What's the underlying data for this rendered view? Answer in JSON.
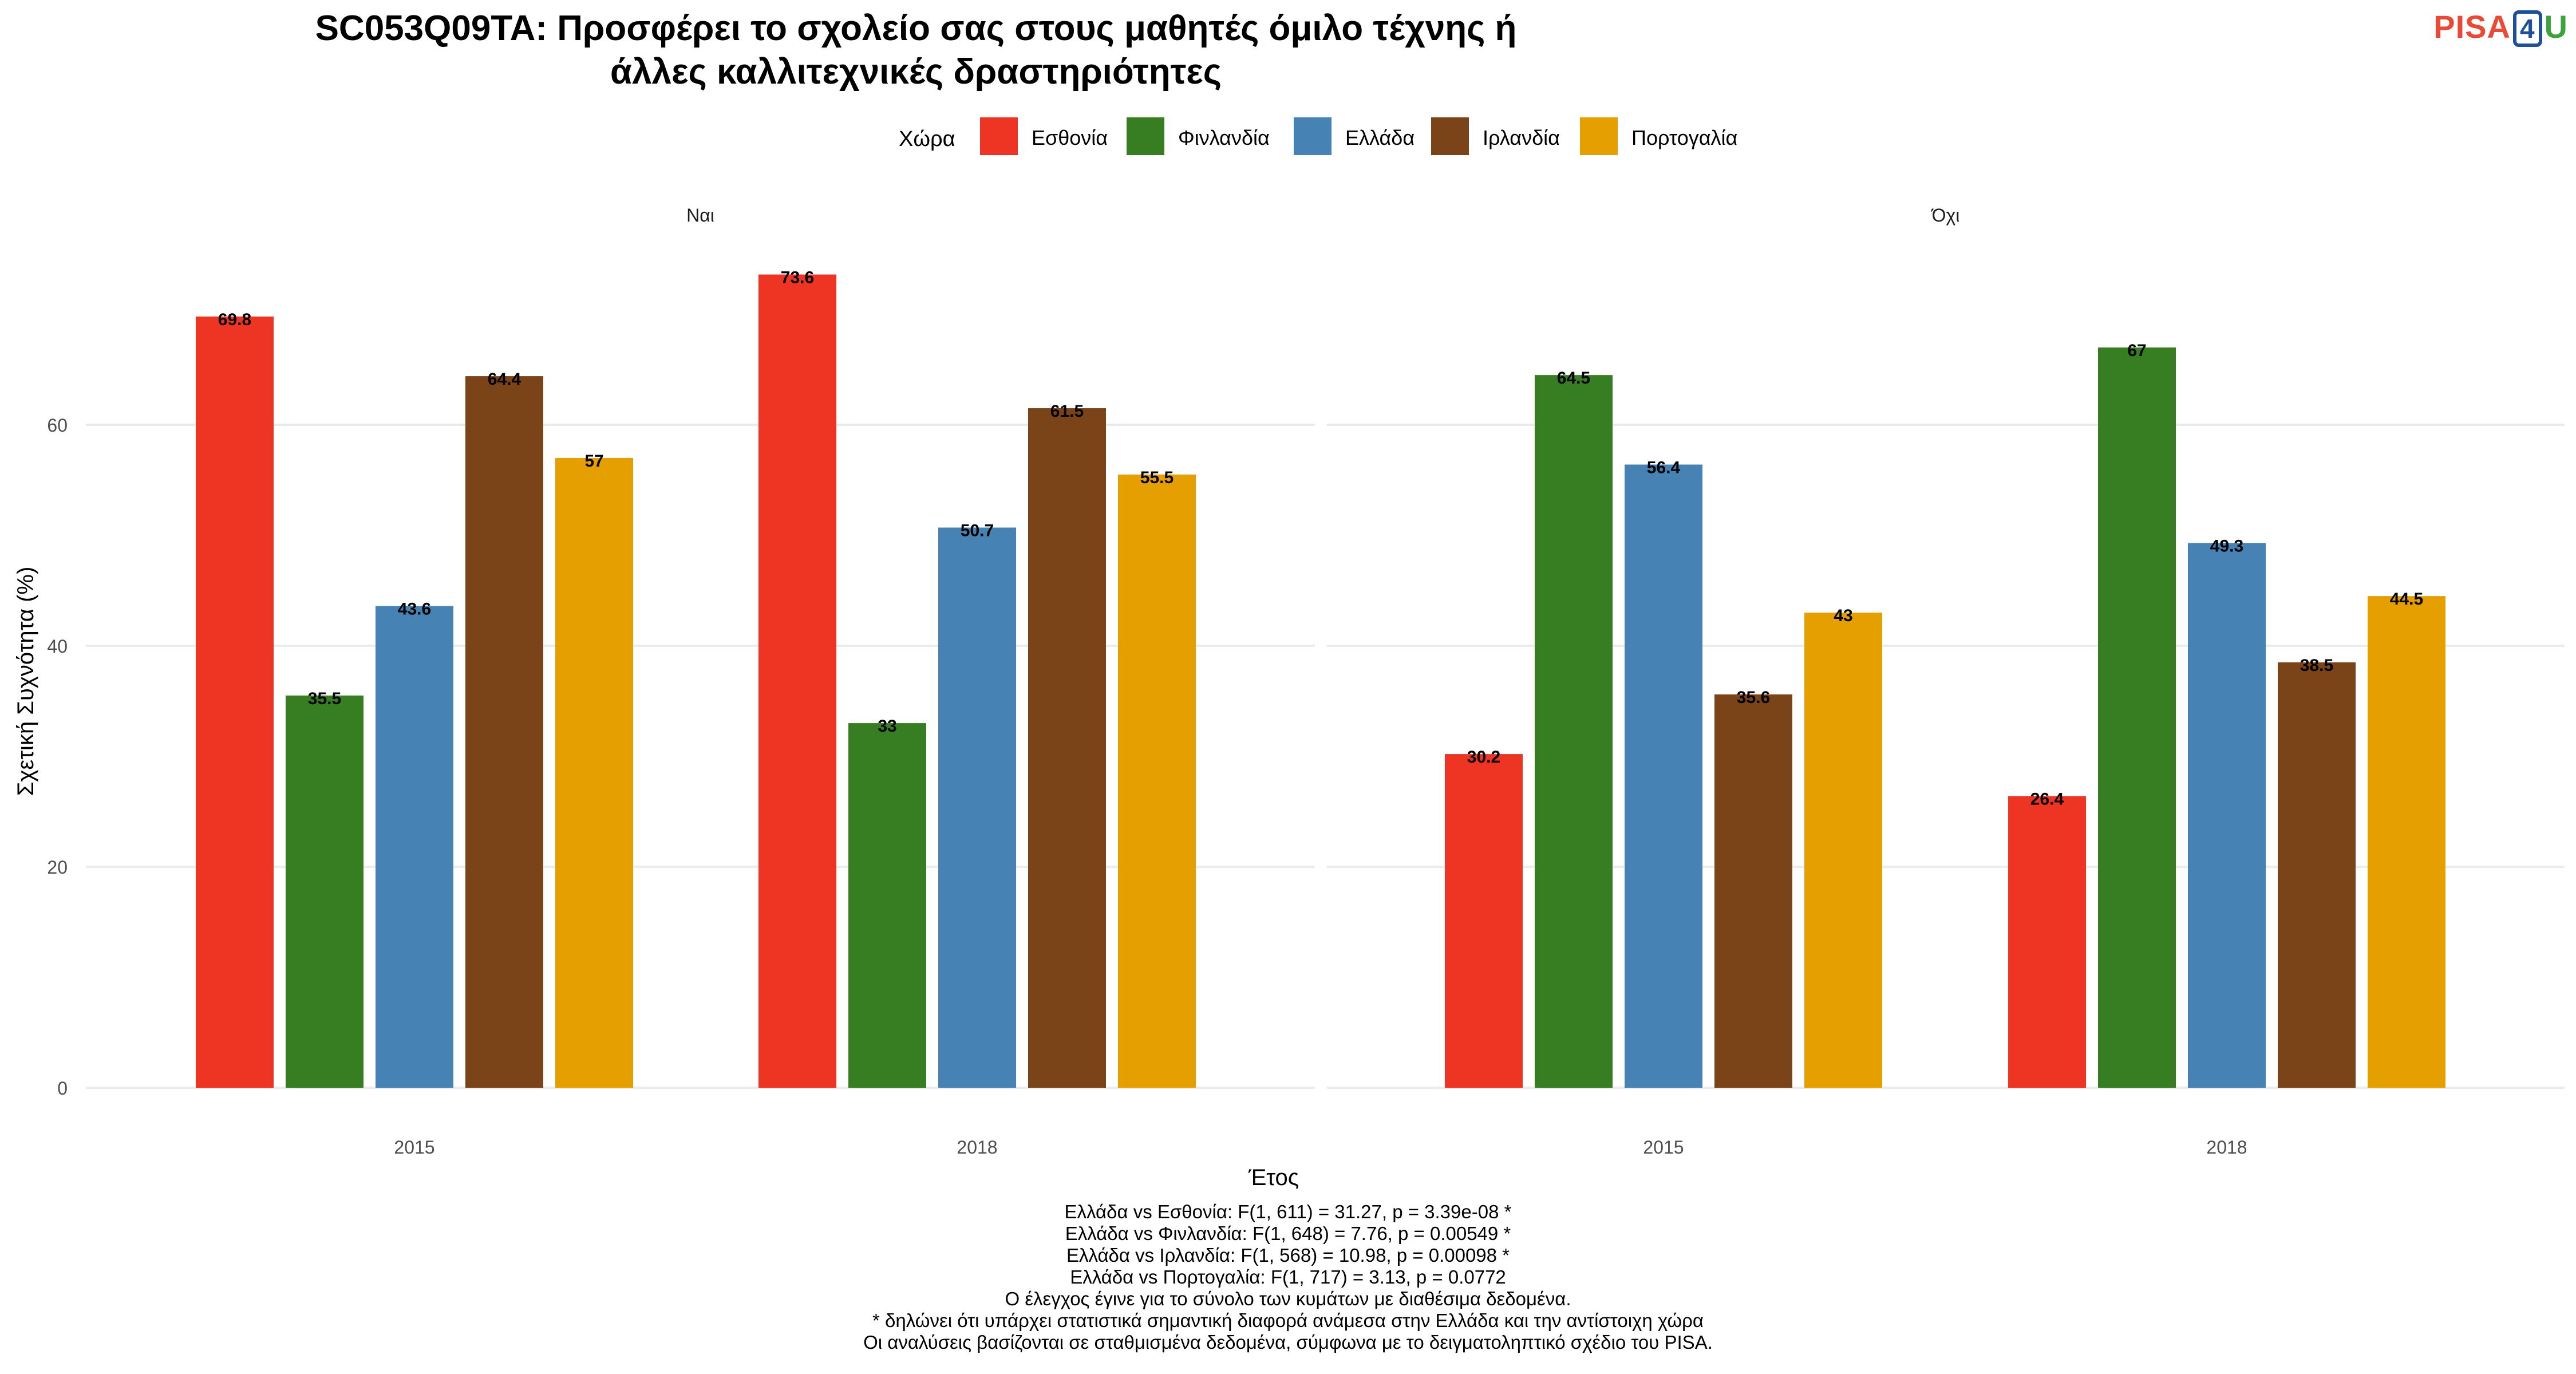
{
  "chart_data": {
    "type": "bar",
    "title": "SC053Q09TA: Προσφέρει το σχολείο σας στους μαθητές όμιλο τέχνης ή άλλες καλλιτεχνικές δραστηριότητες",
    "title_lines": [
      "SC053Q09TA: Προσφέρει το σχολείο σας στους μαθητές όμιλο τέχνης ή",
      "άλλες καλλιτεχνικές δραστηριότητες"
    ],
    "xlabel": "Έτος",
    "ylabel": "Σχετική Συχνότητα (%)",
    "ylim": [
      0,
      75
    ],
    "yticks": [
      0,
      20,
      40,
      60
    ],
    "grid": true,
    "legend": {
      "title": "Χώρα",
      "position": "top"
    },
    "categories": [
      "2015",
      "2018"
    ],
    "series": [
      {
        "name": "Εσθονία",
        "color": "#ee3524"
      },
      {
        "name": "Φινλανδία",
        "color": "#377e22"
      },
      {
        "name": "Ελλάδα",
        "color": "#4682b4"
      },
      {
        "name": "Ιρλανδία",
        "color": "#7b4418"
      },
      {
        "name": "Πορτογαλία",
        "color": "#e69f00"
      }
    ],
    "panels": [
      {
        "label": "Ναι",
        "values": [
          [
            69.8,
            35.5,
            43.6,
            64.4,
            57
          ],
          [
            73.6,
            33,
            50.7,
            61.5,
            55.5
          ]
        ]
      },
      {
        "label": "Όχι",
        "values": [
          [
            30.2,
            64.5,
            56.4,
            35.6,
            43
          ],
          [
            26.4,
            67,
            49.3,
            38.5,
            44.5
          ]
        ]
      }
    ]
  },
  "footnotes": [
    "Ελλάδα vs Εσθονία: F(1, 611) = 31.27, p = 3.39e-08 *",
    "Ελλάδα vs Φινλανδία: F(1, 648) = 7.76, p = 0.00549 *",
    "Ελλάδα vs Ιρλανδία: F(1, 568) = 10.98, p = 0.00098 *",
    "Ελλάδα vs Πορτογαλία: F(1, 717) = 3.13, p = 0.0772",
    "Ο έλεγχος έγινε για το σύνολο των κυμάτων με διαθέσιμα δεδομένα.",
    "* δηλώνει ότι υπάρχει στατιστικά σημαντική διαφορά ανάμεσα στην Ελλάδα και την αντίστοιχη χώρα",
    "Οι αναλύσεις βασίζονται σε σταθμισμένα δεδομένα, σύμφωνα με το δειγματοληπτικό σχέδιο του PISA."
  ],
  "logo": {
    "part1": "PISA",
    "part2": "4",
    "part3": "U"
  }
}
